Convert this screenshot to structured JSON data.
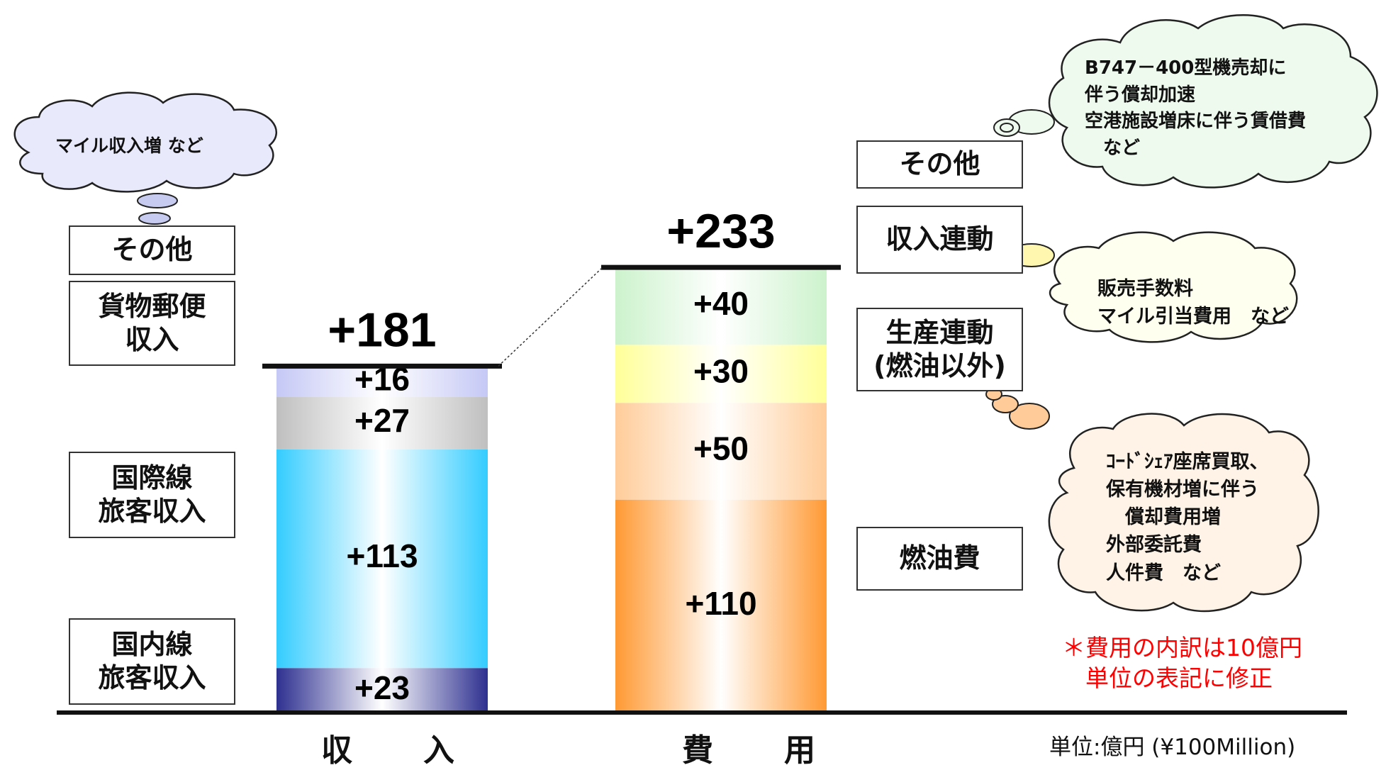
{
  "chart_data": {
    "type": "bar",
    "stacked": true,
    "categories": [
      "収　入",
      "費　用"
    ],
    "unit": "単位:億円 (¥100Million)",
    "bars": [
      {
        "category": "収　入",
        "total": "+181",
        "segments": [
          {
            "name": "国内線\n旅客収入",
            "value": 23,
            "label": "+23",
            "color": "#2e3090"
          },
          {
            "name": "国際線\n旅客収入",
            "value": 113,
            "label": "+113",
            "color": "#33ccff"
          },
          {
            "name": "貨物郵便\n収入",
            "value": 27,
            "label": "+27",
            "color": "#bfbfbf"
          },
          {
            "name": "その他",
            "value": 16,
            "label": "+16",
            "color": "#c5c8f5"
          }
        ]
      },
      {
        "category": "費　用",
        "total": "+233",
        "segments": [
          {
            "name": "燃油費",
            "value": 110,
            "label": "+110",
            "color": "#ff9933"
          },
          {
            "name": "生産連動\n(燃油以外)",
            "value": 50,
            "label": "+50",
            "color": "#ffcc99"
          },
          {
            "name": "収入連動",
            "value": 30,
            "label": "+30",
            "color": "#ffff99"
          },
          {
            "name": "その他",
            "value": 40,
            "label": "+40",
            "color": "#ccf2cc"
          }
        ]
      }
    ],
    "annotations": [
      "マイル収入増 など",
      "B747－400型機売却に\n 伴う償却加速\n空港施設増床に伴う賃借費\n 　など",
      "販売手数料\nマイル引当費用　など",
      "ｺｰﾄﾞｼｪｱ座席買取、\n保有機材増に伴う\n 　償却費用増\n外部委託費\n人件費　など"
    ],
    "note": "＊費用の内訳は10億円\n　単位の表記に修正"
  }
}
